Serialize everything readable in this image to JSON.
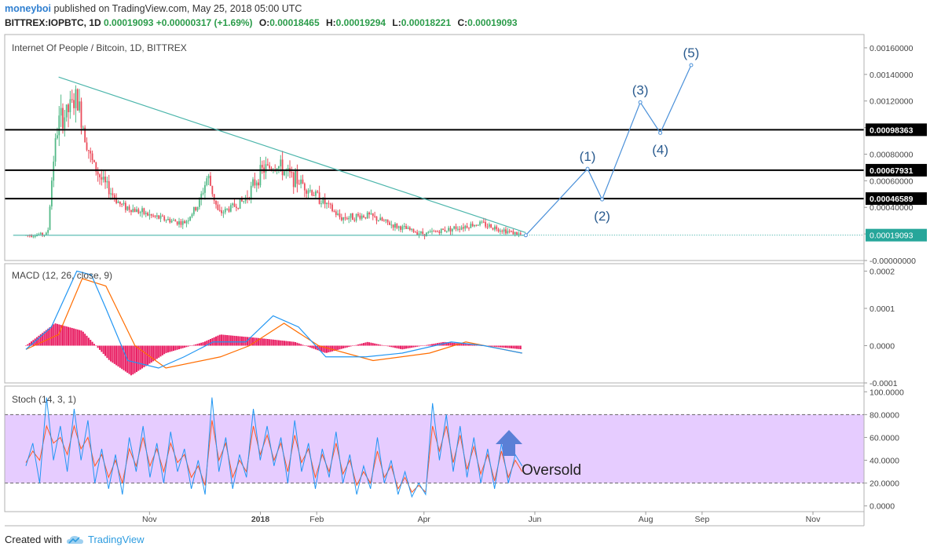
{
  "header": {
    "user": "moneyboi",
    "published": "published on TradingView.com, May 25, 2018 05:00 UTC",
    "symbol": "BITTREX:IOPBTC, 1D",
    "last": "0.00019093",
    "change": "+0.00000317 (+1.69%)",
    "open_label": "O:",
    "open": "0.00018465",
    "high_label": "H:",
    "high": "0.00019294",
    "low_label": "L:",
    "low": "0.00018221",
    "close_label": "C:",
    "close": "0.00019093"
  },
  "footer": {
    "created_with": "Created with",
    "brand": "TradingView"
  },
  "colors": {
    "up": "#53b987",
    "down": "#eb4d5c",
    "trendline": "#4db6ac",
    "wave": "#4a90d9",
    "wave_label": "#2a5b8f",
    "macd": "#2196f3",
    "signal": "#ff6d00",
    "hist": "#e91e63",
    "stoch_k": "#2196f3",
    "stoch_d": "#ff5722",
    "stoch_band": "#e6ccff",
    "last_price": "#26a69a"
  },
  "chart_data": [
    {
      "type": "candlestick",
      "title": "Internet Of People / Bitcoin, 1D, BITTREX",
      "ylim": [
        0,
        0.0017
      ],
      "y_ticks": [
        "0.00160000",
        "0.00140000",
        "0.00120000",
        "0.00100000",
        "0.00080000",
        "0.00060000",
        "0.00040000",
        "0.00020000",
        "-0.00000000"
      ],
      "x_ticks": [
        "Nov",
        "2018",
        "Feb",
        "Apr",
        "Jun",
        "Aug",
        "Sep",
        "Nov"
      ],
      "horizontal_levels": [
        "0.00098363",
        "0.00067931",
        "0.00046589"
      ],
      "last_price": "0.00019093",
      "price_path": [
        {
          "x": "2017-08-25",
          "y": 0.00019
        },
        {
          "x": "2017-09-06",
          "y": 0.0002
        },
        {
          "x": "2017-09-09",
          "y": 0.00075
        },
        {
          "x": "2017-09-12",
          "y": 0.00105
        },
        {
          "x": "2017-09-16",
          "y": 0.0011
        },
        {
          "x": "2017-09-22",
          "y": 0.00122
        },
        {
          "x": "2017-09-30",
          "y": 0.00075
        },
        {
          "x": "2017-10-06",
          "y": 0.0006
        },
        {
          "x": "2017-10-16",
          "y": 0.00042
        },
        {
          "x": "2017-11-03",
          "y": 0.00033
        },
        {
          "x": "2017-11-20",
          "y": 0.00028
        },
        {
          "x": "2017-11-28",
          "y": 0.00042
        },
        {
          "x": "2017-12-03",
          "y": 0.00064
        },
        {
          "x": "2017-12-09",
          "y": 0.00035
        },
        {
          "x": "2017-12-23",
          "y": 0.00045
        },
        {
          "x": "2018-01-02",
          "y": 0.00068
        },
        {
          "x": "2018-01-10",
          "y": 0.00072
        },
        {
          "x": "2018-01-18",
          "y": 0.00063
        },
        {
          "x": "2018-01-24",
          "y": 0.00058
        },
        {
          "x": "2018-02-04",
          "y": 0.00045
        },
        {
          "x": "2018-02-14",
          "y": 0.00032
        },
        {
          "x": "2018-03-01",
          "y": 0.00034
        },
        {
          "x": "2018-03-16",
          "y": 0.00026
        },
        {
          "x": "2018-04-01",
          "y": 0.0002
        },
        {
          "x": "2018-04-16",
          "y": 0.00024
        },
        {
          "x": "2018-05-02",
          "y": 0.00028
        },
        {
          "x": "2018-05-12",
          "y": 0.00024
        },
        {
          "x": "2018-05-25",
          "y": 0.00019093
        }
      ],
      "trendlines": [
        {
          "from": {
            "x": "2017-09-12",
            "y": 0.00138
          },
          "to": {
            "x": "2018-05-27",
            "y": 0.00021
          }
        },
        {
          "from": {
            "x": "2017-08-18",
            "y": 0.00019
          },
          "to": {
            "x": "2018-05-27",
            "y": 0.00019
          }
        }
      ],
      "elliott_wave": {
        "labels": [
          "(1)",
          "(2)",
          "(3)",
          "(4)",
          "(5)"
        ],
        "points": [
          {
            "x": "2018-05-27",
            "y": 0.00019
          },
          {
            "x": "2018-06-30",
            "y": 0.00069
          },
          {
            "x": "2018-07-08",
            "y": 0.00046
          },
          {
            "x": "2018-07-29",
            "y": 0.00119
          },
          {
            "x": "2018-08-09",
            "y": 0.00096
          },
          {
            "x": "2018-08-26",
            "y": 0.00147
          }
        ]
      }
    },
    {
      "type": "line",
      "title": "MACD (12, 26, close, 9)",
      "ylim": [
        -0.0001,
        0.00022
      ],
      "y_ticks": [
        "0.0002",
        "0.0001",
        "0.0000",
        "-0.0001"
      ],
      "series": [
        {
          "name": "MACD",
          "points": [
            {
              "x": "2017-08-25",
              "y": -1e-05
            },
            {
              "x": "2017-09-08",
              "y": 5e-05
            },
            {
              "x": "2017-09-22",
              "y": 0.0002
            },
            {
              "x": "2017-09-30",
              "y": 0.00019
            },
            {
              "x": "2017-10-08",
              "y": 0.0001
            },
            {
              "x": "2017-10-20",
              "y": -4e-05
            },
            {
              "x": "2017-11-06",
              "y": -6e-05
            },
            {
              "x": "2017-11-20",
              "y": -3e-05
            },
            {
              "x": "2017-12-06",
              "y": 1e-05
            },
            {
              "x": "2017-12-24",
              "y": 1e-05
            },
            {
              "x": "2018-01-08",
              "y": 8e-05
            },
            {
              "x": "2018-01-22",
              "y": 5e-05
            },
            {
              "x": "2018-02-06",
              "y": -3e-05
            },
            {
              "x": "2018-02-28",
              "y": -3e-05
            },
            {
              "x": "2018-03-20",
              "y": -2e-05
            },
            {
              "x": "2018-04-16",
              "y": 1e-05
            },
            {
              "x": "2018-05-04",
              "y": 0.0
            },
            {
              "x": "2018-05-25",
              "y": -2e-05
            }
          ]
        },
        {
          "name": "Signal",
          "points": [
            {
              "x": "2017-08-25",
              "y": -1e-05
            },
            {
              "x": "2017-09-12",
              "y": 3e-05
            },
            {
              "x": "2017-09-25",
              "y": 0.00018
            },
            {
              "x": "2017-10-08",
              "y": 0.00016
            },
            {
              "x": "2017-10-24",
              "y": 0.0
            },
            {
              "x": "2017-11-10",
              "y": -6e-05
            },
            {
              "x": "2017-12-10",
              "y": -3e-05
            },
            {
              "x": "2017-12-26",
              "y": 0.0
            },
            {
              "x": "2018-01-14",
              "y": 6e-05
            },
            {
              "x": "2018-02-02",
              "y": 0.0
            },
            {
              "x": "2018-03-04",
              "y": -4e-05
            },
            {
              "x": "2018-04-04",
              "y": -2e-05
            },
            {
              "x": "2018-04-24",
              "y": 1e-05
            },
            {
              "x": "2018-05-25",
              "y": -2e-05
            }
          ]
        },
        {
          "name": "Histogram",
          "points": [
            {
              "x": "2017-08-25",
              "y": 0.0
            },
            {
              "x": "2017-09-10",
              "y": 6e-05
            },
            {
              "x": "2017-09-25",
              "y": 4e-05
            },
            {
              "x": "2017-10-10",
              "y": -4e-05
            },
            {
              "x": "2017-10-22",
              "y": -8e-05
            },
            {
              "x": "2017-11-10",
              "y": -2e-05
            },
            {
              "x": "2017-12-01",
              "y": 1e-05
            },
            {
              "x": "2017-12-10",
              "y": 3e-05
            },
            {
              "x": "2018-01-01",
              "y": 2e-05
            },
            {
              "x": "2018-01-20",
              "y": 1e-05
            },
            {
              "x": "2018-02-06",
              "y": -2e-05
            },
            {
              "x": "2018-03-01",
              "y": 1e-05
            },
            {
              "x": "2018-03-20",
              "y": -1e-05
            },
            {
              "x": "2018-04-12",
              "y": 1e-05
            },
            {
              "x": "2018-05-25",
              "y": -1e-05
            }
          ]
        }
      ]
    },
    {
      "type": "line",
      "title": "Stoch (14, 3, 1)",
      "ylim": [
        -5,
        105
      ],
      "y_ticks": [
        "100.0000",
        "80.0000",
        "60.0000",
        "40.0000",
        "20.0000",
        "0.0000"
      ],
      "band": [
        20,
        80
      ],
      "annotation": "Oversold",
      "series": [
        {
          "name": "%K",
          "values": [
            35,
            55,
            20,
            95,
            40,
            70,
            30,
            85,
            40,
            75,
            20,
            50,
            15,
            45,
            10,
            60,
            30,
            70,
            25,
            55,
            20,
            65,
            30,
            50,
            15,
            40,
            10,
            95,
            30,
            60,
            15,
            45,
            25,
            85,
            40,
            70,
            35,
            60,
            20,
            75,
            30,
            55,
            15,
            50,
            25,
            65,
            20,
            45,
            10,
            35,
            15,
            60,
            20,
            40,
            10,
            30,
            8,
            20,
            10,
            90,
            40,
            80,
            30,
            70,
            25,
            60,
            20,
            50,
            15,
            55,
            20,
            45,
            35
          ]
        },
        {
          "name": "%D",
          "values": [
            38,
            48,
            40,
            70,
            55,
            60,
            45,
            70,
            50,
            60,
            35,
            45,
            25,
            40,
            20,
            50,
            35,
            60,
            35,
            50,
            30,
            55,
            38,
            45,
            25,
            35,
            18,
            75,
            40,
            55,
            25,
            40,
            30,
            70,
            45,
            62,
            40,
            55,
            30,
            62,
            38,
            50,
            25,
            45,
            30,
            55,
            28,
            40,
            18,
            30,
            20,
            48,
            25,
            35,
            15,
            25,
            12,
            18,
            12,
            70,
            48,
            70,
            38,
            62,
            32,
            52,
            28,
            45,
            22,
            48,
            25,
            40,
            30
          ]
        }
      ]
    }
  ]
}
